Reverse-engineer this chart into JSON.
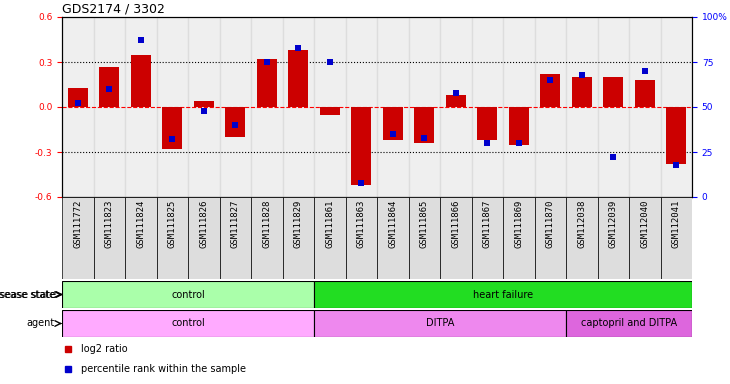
{
  "title": "GDS2174 / 3302",
  "samples": [
    "GSM111772",
    "GSM111823",
    "GSM111824",
    "GSM111825",
    "GSM111826",
    "GSM111827",
    "GSM111828",
    "GSM111829",
    "GSM111861",
    "GSM111863",
    "GSM111864",
    "GSM111865",
    "GSM111866",
    "GSM111867",
    "GSM111869",
    "GSM111870",
    "GSM112038",
    "GSM112039",
    "GSM112040",
    "GSM112041"
  ],
  "log2_ratio": [
    0.13,
    0.27,
    0.35,
    -0.28,
    0.04,
    -0.2,
    0.32,
    0.38,
    -0.05,
    -0.52,
    -0.22,
    -0.24,
    0.08,
    -0.22,
    -0.25,
    0.22,
    0.2,
    0.2,
    0.18,
    -0.38
  ],
  "percentile": [
    52,
    60,
    87,
    32,
    48,
    40,
    75,
    83,
    75,
    8,
    35,
    33,
    58,
    30,
    30,
    65,
    68,
    22,
    70,
    18
  ],
  "disease_state": [
    {
      "label": "control",
      "start": 0,
      "end": 8,
      "color": "#AAFFAA"
    },
    {
      "label": "heart failure",
      "start": 8,
      "end": 20,
      "color": "#22DD22"
    }
  ],
  "agent": [
    {
      "label": "control",
      "start": 0,
      "end": 8,
      "color": "#FFAAFF"
    },
    {
      "label": "DITPA",
      "start": 8,
      "end": 16,
      "color": "#EE88EE"
    },
    {
      "label": "captopril and DITPA",
      "start": 16,
      "end": 20,
      "color": "#DD66DD"
    }
  ],
  "ylim": [
    -0.6,
    0.6
  ],
  "yticks_left": [
    -0.6,
    -0.3,
    0.0,
    0.3,
    0.6
  ],
  "yticks_right": [
    0,
    25,
    50,
    75,
    100
  ],
  "bar_color": "#CC0000",
  "dot_color": "#0000CC",
  "legend_bar_label": "log2 ratio",
  "legend_dot_label": "percentile rank within the sample",
  "bar_width": 0.65,
  "col_bg_color": "#CCCCCC",
  "label_fontsize": 7,
  "tick_fontsize": 6.5
}
